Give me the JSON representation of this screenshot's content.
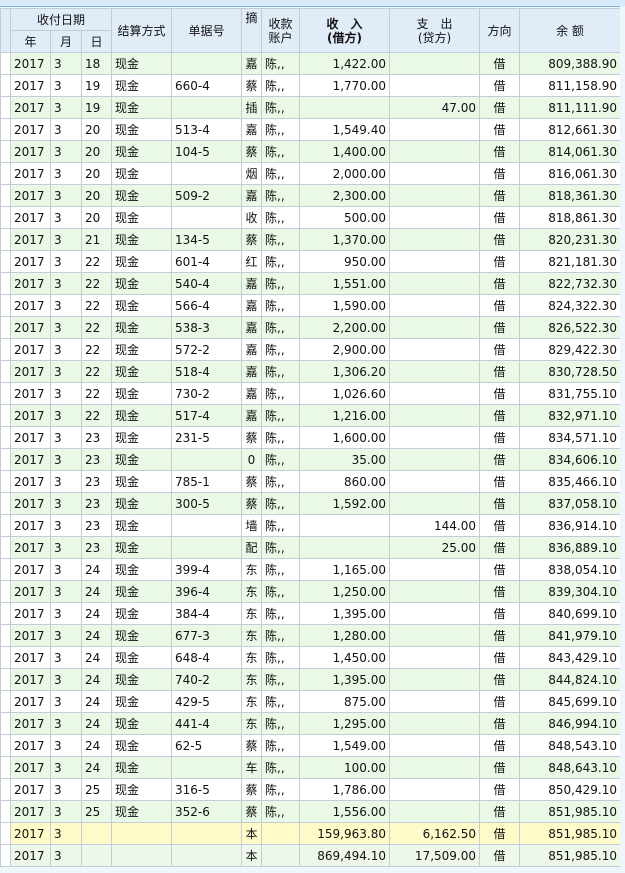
{
  "header": {
    "date_group": "收付日期",
    "year": "年",
    "month": "月",
    "day": "日",
    "settlement": "结算方式",
    "doc_no": "单据号",
    "summary": "摘",
    "account_l1": "收款",
    "account_l2": "账户",
    "income_l1": "收　入",
    "income_l2": "(借方)",
    "expense_l1": "支　出",
    "expense_l2": "(贷方)",
    "direction": "方向",
    "balance": "余 额"
  },
  "rows": [
    [
      "2017",
      "3",
      "18",
      "现金",
      "",
      "嘉",
      "陈,,",
      "1,422.00",
      "",
      "借",
      "809,388.90"
    ],
    [
      "2017",
      "3",
      "19",
      "现金",
      "660-4",
      "蔡",
      "陈,,",
      "1,770.00",
      "",
      "借",
      "811,158.90"
    ],
    [
      "2017",
      "3",
      "19",
      "现金",
      "",
      "插",
      "陈,,",
      "",
      "47.00",
      "借",
      "811,111.90"
    ],
    [
      "2017",
      "3",
      "20",
      "现金",
      "513-4",
      "嘉",
      "陈,,",
      "1,549.40",
      "",
      "借",
      "812,661.30"
    ],
    [
      "2017",
      "3",
      "20",
      "现金",
      "104-5",
      "蔡",
      "陈,,",
      "1,400.00",
      "",
      "借",
      "814,061.30"
    ],
    [
      "2017",
      "3",
      "20",
      "现金",
      "",
      "烟",
      "陈,,",
      "2,000.00",
      "",
      "借",
      "816,061.30"
    ],
    [
      "2017",
      "3",
      "20",
      "现金",
      "509-2",
      "嘉",
      "陈,,",
      "2,300.00",
      "",
      "借",
      "818,361.30"
    ],
    [
      "2017",
      "3",
      "20",
      "现金",
      "",
      "收",
      "陈,,",
      "500.00",
      "",
      "借",
      "818,861.30"
    ],
    [
      "2017",
      "3",
      "21",
      "现金",
      "134-5",
      "蔡",
      "陈,,",
      "1,370.00",
      "",
      "借",
      "820,231.30"
    ],
    [
      "2017",
      "3",
      "22",
      "现金",
      "601-4",
      "红",
      "陈,,",
      "950.00",
      "",
      "借",
      "821,181.30"
    ],
    [
      "2017",
      "3",
      "22",
      "现金",
      "540-4",
      "嘉",
      "陈,,",
      "1,551.00",
      "",
      "借",
      "822,732.30"
    ],
    [
      "2017",
      "3",
      "22",
      "现金",
      "566-4",
      "嘉",
      "陈,,",
      "1,590.00",
      "",
      "借",
      "824,322.30"
    ],
    [
      "2017",
      "3",
      "22",
      "现金",
      "538-3",
      "嘉",
      "陈,,",
      "2,200.00",
      "",
      "借",
      "826,522.30"
    ],
    [
      "2017",
      "3",
      "22",
      "现金",
      "572-2",
      "嘉",
      "陈,,",
      "2,900.00",
      "",
      "借",
      "829,422.30"
    ],
    [
      "2017",
      "3",
      "22",
      "现金",
      "518-4",
      "嘉",
      "陈,,",
      "1,306.20",
      "",
      "借",
      "830,728.50"
    ],
    [
      "2017",
      "3",
      "22",
      "现金",
      "730-2",
      "嘉",
      "陈,,",
      "1,026.60",
      "",
      "借",
      "831,755.10"
    ],
    [
      "2017",
      "3",
      "22",
      "现金",
      "517-4",
      "嘉",
      "陈,,",
      "1,216.00",
      "",
      "借",
      "832,971.10"
    ],
    [
      "2017",
      "3",
      "23",
      "现金",
      "231-5",
      "蔡",
      "陈,,",
      "1,600.00",
      "",
      "借",
      "834,571.10"
    ],
    [
      "2017",
      "3",
      "23",
      "现金",
      "",
      "0",
      "陈,,",
      "35.00",
      "",
      "借",
      "834,606.10"
    ],
    [
      "2017",
      "3",
      "23",
      "现金",
      "785-1",
      "蔡",
      "陈,,",
      "860.00",
      "",
      "借",
      "835,466.10"
    ],
    [
      "2017",
      "3",
      "23",
      "现金",
      "300-5",
      "蔡",
      "陈,,",
      "1,592.00",
      "",
      "借",
      "837,058.10"
    ],
    [
      "2017",
      "3",
      "23",
      "现金",
      "",
      "墙",
      "陈,,",
      "",
      "144.00",
      "借",
      "836,914.10"
    ],
    [
      "2017",
      "3",
      "23",
      "现金",
      "",
      "配",
      "陈,,",
      "",
      "25.00",
      "借",
      "836,889.10"
    ],
    [
      "2017",
      "3",
      "24",
      "现金",
      "399-4",
      "东",
      "陈,,",
      "1,165.00",
      "",
      "借",
      "838,054.10"
    ],
    [
      "2017",
      "3",
      "24",
      "现金",
      "396-4",
      "东",
      "陈,,",
      "1,250.00",
      "",
      "借",
      "839,304.10"
    ],
    [
      "2017",
      "3",
      "24",
      "现金",
      "384-4",
      "东",
      "陈,,",
      "1,395.00",
      "",
      "借",
      "840,699.10"
    ],
    [
      "2017",
      "3",
      "24",
      "现金",
      "677-3",
      "东",
      "陈,,",
      "1,280.00",
      "",
      "借",
      "841,979.10"
    ],
    [
      "2017",
      "3",
      "24",
      "现金",
      "648-4",
      "东",
      "陈,,",
      "1,450.00",
      "",
      "借",
      "843,429.10"
    ],
    [
      "2017",
      "3",
      "24",
      "现金",
      "740-2",
      "东",
      "陈,,",
      "1,395.00",
      "",
      "借",
      "844,824.10"
    ],
    [
      "2017",
      "3",
      "24",
      "现金",
      "429-5",
      "东",
      "陈,,",
      "875.00",
      "",
      "借",
      "845,699.10"
    ],
    [
      "2017",
      "3",
      "24",
      "现金",
      "441-4",
      "东",
      "陈,,",
      "1,295.00",
      "",
      "借",
      "846,994.10"
    ],
    [
      "2017",
      "3",
      "24",
      "现金",
      "62-5",
      "蔡",
      "陈,,",
      "1,549.00",
      "",
      "借",
      "848,543.10"
    ],
    [
      "2017",
      "3",
      "24",
      "现金",
      "",
      "车",
      "陈,,",
      "100.00",
      "",
      "借",
      "848,643.10"
    ],
    [
      "2017",
      "3",
      "25",
      "现金",
      "316-5",
      "蔡",
      "陈,,",
      "1,786.00",
      "",
      "借",
      "850,429.10"
    ],
    [
      "2017",
      "3",
      "25",
      "现金",
      "352-6",
      "蔡",
      "陈,,",
      "1,556.00",
      "",
      "借",
      "851,985.10"
    ]
  ],
  "totals": [
    [
      "2017",
      "3",
      "",
      "",
      "",
      "本",
      "",
      "159,963.80",
      "6,162.50",
      "借",
      "851,985.10"
    ],
    [
      "2017",
      "3",
      "",
      "",
      "",
      "本",
      "",
      "869,494.10",
      "17,509.00",
      "借",
      "851,985.10"
    ]
  ],
  "colors": {
    "header_bg": "#e1ecf9",
    "row_alt": "#eaf8e6",
    "month_total": "#fffbc9",
    "cumulative_total": "#eef8ea"
  }
}
